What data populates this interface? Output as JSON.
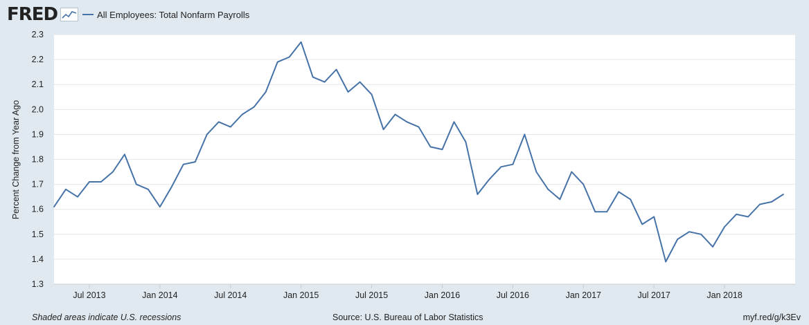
{
  "header": {
    "logo_text": "FRED",
    "logo_icon": "fred-mini-chart-icon",
    "series_label": "All Employees: Total Nonfarm Payrolls"
  },
  "footer": {
    "recession_note": "Shaded areas indicate U.S. recessions",
    "source": "Source: U.S. Bureau of Labor Statistics",
    "shortlink": "myf.red/g/k3Ev"
  },
  "colors": {
    "background": "#e1e9f0",
    "plot_background": "#ffffff",
    "series_line": "#4572a7",
    "gridline": "#e6e6e6"
  },
  "chart_data": {
    "type": "line",
    "title": "",
    "xlabel": "",
    "ylabel": "Percent Change from Year Ago",
    "ylim": [
      1.3,
      2.3
    ],
    "yticks": [
      1.3,
      1.4,
      1.5,
      1.6,
      1.7,
      1.8,
      1.9,
      2.0,
      2.1,
      2.2,
      2.3
    ],
    "ytick_labels": [
      "1.3",
      "1.4",
      "1.5",
      "1.6",
      "1.7",
      "1.8",
      "1.9",
      "2.0",
      "2.1",
      "2.2",
      "2.3"
    ],
    "xlim": [
      "2013-04",
      "2018-07"
    ],
    "xticks": [
      "2013-07",
      "2014-01",
      "2014-07",
      "2015-01",
      "2015-07",
      "2016-01",
      "2016-07",
      "2017-01",
      "2017-07",
      "2018-01"
    ],
    "xtick_labels": [
      "Jul 2013",
      "Jan 2014",
      "Jul 2014",
      "Jan 2015",
      "Jul 2015",
      "Jan 2016",
      "Jul 2016",
      "Jan 2017",
      "Jul 2017",
      "Jan 2018"
    ],
    "grid": true,
    "legend_position": "top-left",
    "series": [
      {
        "name": "All Employees: Total Nonfarm Payrolls",
        "x": [
          "2013-04",
          "2013-05",
          "2013-06",
          "2013-07",
          "2013-08",
          "2013-09",
          "2013-10",
          "2013-11",
          "2013-12",
          "2014-01",
          "2014-02",
          "2014-03",
          "2014-04",
          "2014-05",
          "2014-06",
          "2014-07",
          "2014-08",
          "2014-09",
          "2014-10",
          "2014-11",
          "2014-12",
          "2015-01",
          "2015-02",
          "2015-03",
          "2015-04",
          "2015-05",
          "2015-06",
          "2015-07",
          "2015-08",
          "2015-09",
          "2015-10",
          "2015-11",
          "2015-12",
          "2016-01",
          "2016-02",
          "2016-03",
          "2016-04",
          "2016-05",
          "2016-06",
          "2016-07",
          "2016-08",
          "2016-09",
          "2016-10",
          "2016-11",
          "2016-12",
          "2017-01",
          "2017-02",
          "2017-03",
          "2017-04",
          "2017-05",
          "2017-06",
          "2017-07",
          "2017-08",
          "2017-09",
          "2017-10",
          "2017-11",
          "2017-12",
          "2018-01",
          "2018-02",
          "2018-03",
          "2018-04",
          "2018-05",
          "2018-06"
        ],
        "values": [
          1.61,
          1.68,
          1.65,
          1.71,
          1.71,
          1.75,
          1.82,
          1.7,
          1.68,
          1.61,
          1.69,
          1.78,
          1.79,
          1.9,
          1.95,
          1.93,
          1.98,
          2.01,
          2.07,
          2.19,
          2.21,
          2.27,
          2.13,
          2.11,
          2.16,
          2.07,
          2.11,
          2.06,
          1.92,
          1.98,
          1.95,
          1.93,
          1.85,
          1.84,
          1.95,
          1.87,
          1.66,
          1.72,
          1.77,
          1.78,
          1.9,
          1.75,
          1.68,
          1.64,
          1.75,
          1.7,
          1.59,
          1.59,
          1.67,
          1.64,
          1.54,
          1.57,
          1.39,
          1.48,
          1.51,
          1.5,
          1.45,
          1.53,
          1.58,
          1.57,
          1.62,
          1.63,
          1.66
        ]
      }
    ]
  }
}
